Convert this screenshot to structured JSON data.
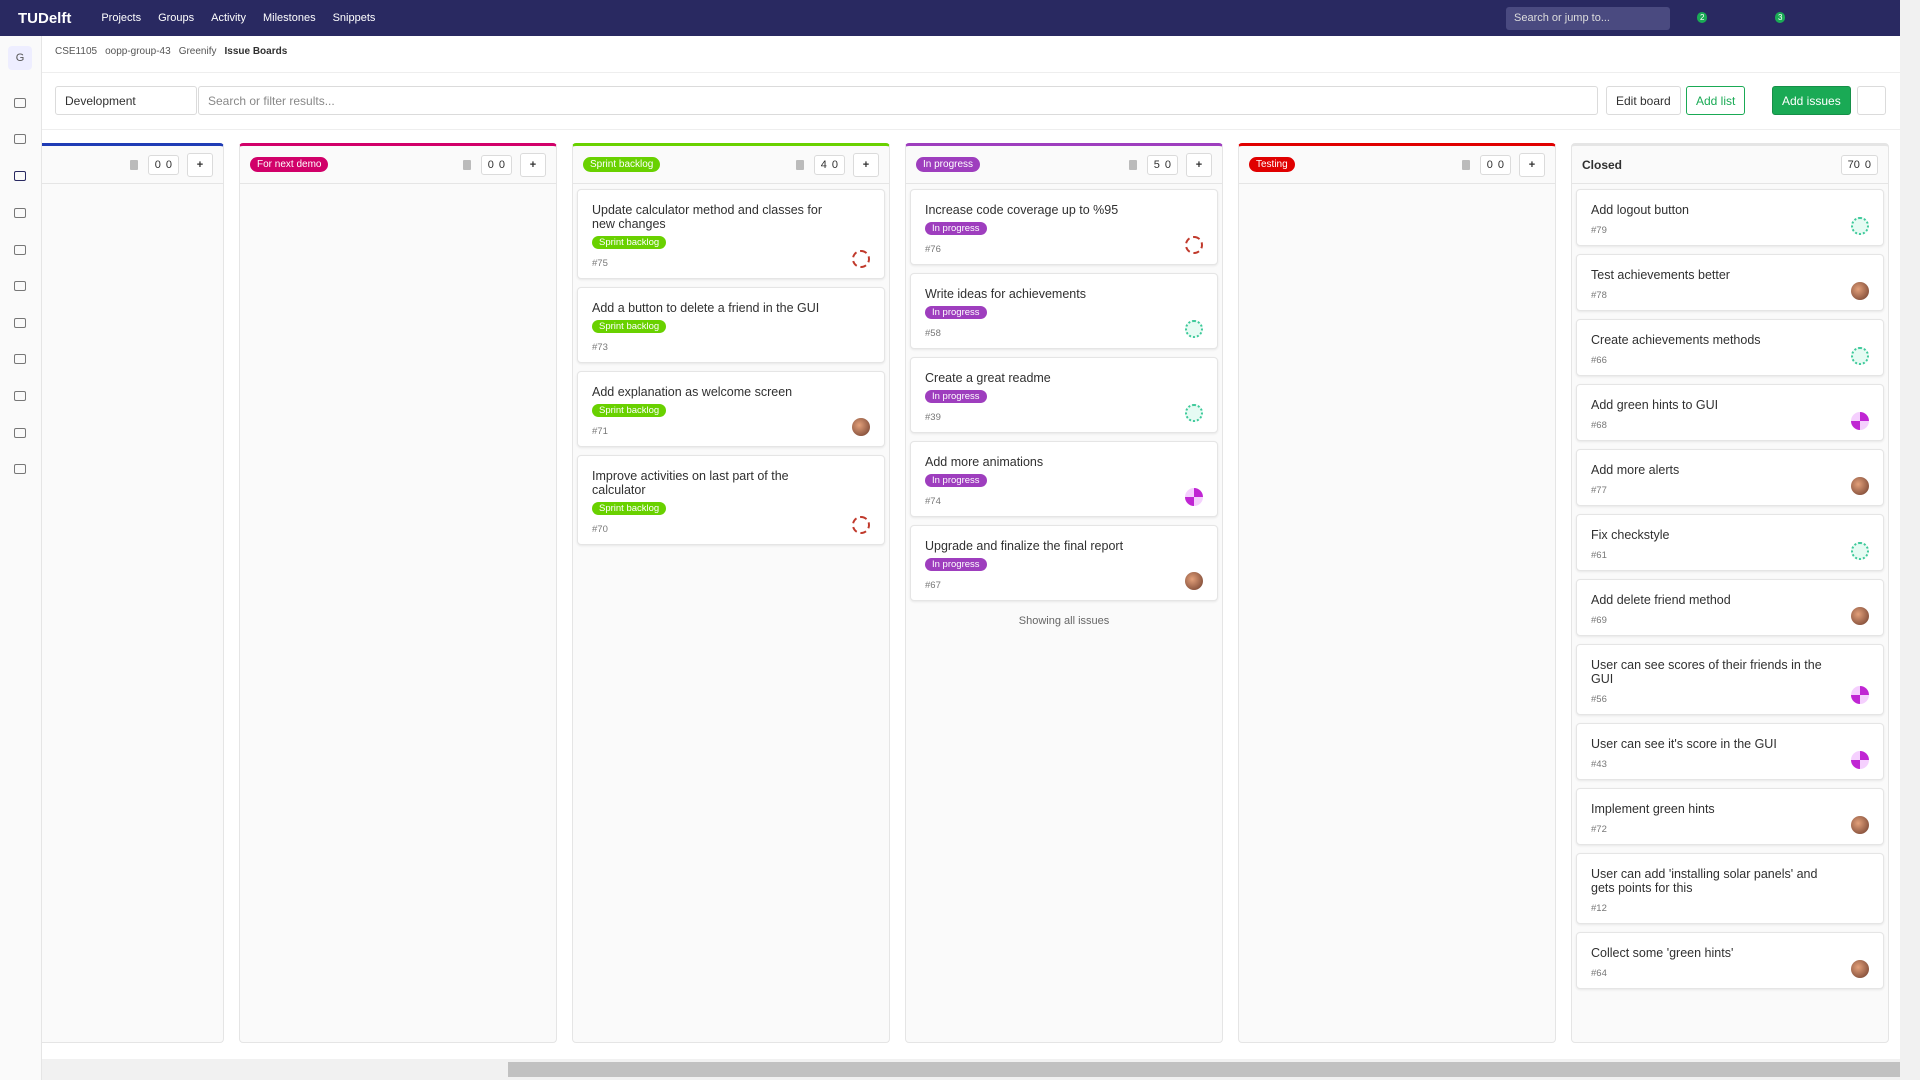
{
  "nav": {
    "logo": "TUDelft",
    "menu": [
      "Projects",
      "Groups",
      "Activity",
      "Milestones",
      "Snippets"
    ],
    "search": "Search or jump to...",
    "badges": [
      2,
      3
    ]
  },
  "sidebar": {
    "avatar": "G"
  },
  "breadcrumbs": [
    "CSE1105",
    "oopp-group-43",
    "Greenify",
    "Issue Boards"
  ],
  "toolbar": {
    "board": "Development",
    "filter": "Search or filter results...",
    "edit": "Edit board",
    "add_list": "Add list",
    "add_issues": "Add issues"
  },
  "lists": [
    {
      "color": "#1f3cb5",
      "issues_count": 0,
      "weight": 0,
      "issues": []
    },
    {
      "title": "For next demo",
      "color": "#d10069",
      "issues_count": 0,
      "weight": 0,
      "issues": []
    },
    {
      "title": "Sprint backlog",
      "color": "#69d100",
      "issues_count": 4,
      "weight": 0,
      "issues": [
        {
          "title": "Update calculator method and classes for new changes",
          "label": "Sprint backlog",
          "number": "#75",
          "avatar": "ring"
        },
        {
          "title": "Add a button to delete a friend in the GUI",
          "label": "Sprint backlog",
          "number": "#73"
        },
        {
          "title": "Add explanation as welcome screen",
          "label": "Sprint backlog",
          "number": "#71",
          "avatar": "photo"
        },
        {
          "title": "Improve activities on last part of the calculator",
          "label": "Sprint backlog",
          "number": "#70",
          "avatar": "ring"
        }
      ]
    },
    {
      "title": "In progress",
      "color": "#9e3ebe",
      "issues_count": 5,
      "weight": 0,
      "footer": "Showing all issues",
      "issues": [
        {
          "title": "Increase code coverage up to %95",
          "label": "In progress",
          "number": "#76",
          "avatar": "ring"
        },
        {
          "title": "Write ideas for achievements",
          "label": "In progress",
          "number": "#58",
          "avatar": "green"
        },
        {
          "title": "Create a great readme",
          "label": "In progress",
          "number": "#39",
          "avatar": "green"
        },
        {
          "title": "Add more animations",
          "label": "In progress",
          "number": "#74",
          "avatar": "purple"
        },
        {
          "title": "Upgrade and finalize the final report",
          "label": "In progress",
          "number": "#67",
          "avatar": "photo"
        }
      ]
    },
    {
      "title": "Testing",
      "color": "#e00000",
      "issues_count": 0,
      "weight": 0,
      "issues": []
    },
    {
      "title": "Closed",
      "issues_count": 70,
      "weight": 0,
      "issues": [
        {
          "title": "Add logout button",
          "number": "#79",
          "avatar": "green"
        },
        {
          "title": "Test achievements better",
          "number": "#78",
          "avatar": "photo"
        },
        {
          "title": "Create achievements methods",
          "number": "#66",
          "avatar": "green"
        },
        {
          "title": "Add green hints to GUI",
          "number": "#68",
          "avatar": "purple"
        },
        {
          "title": "Add more alerts",
          "number": "#77",
          "avatar": "photo"
        },
        {
          "title": "Fix checkstyle",
          "number": "#61",
          "avatar": "green"
        },
        {
          "title": "Add delete friend method",
          "number": "#69",
          "avatar": "photo"
        },
        {
          "title": "User can see scores of their friends in the GUI",
          "number": "#56",
          "avatar": "purple"
        },
        {
          "title": "User can see it's score in the GUI",
          "number": "#43",
          "avatar": "purple"
        },
        {
          "title": "Implement green hints",
          "number": "#72",
          "avatar": "photo"
        },
        {
          "title": "User can add 'installing solar panels' and gets points for this",
          "number": "#12"
        },
        {
          "title": "Collect some 'green hints'",
          "number": "#64",
          "avatar": "photo"
        }
      ]
    }
  ]
}
